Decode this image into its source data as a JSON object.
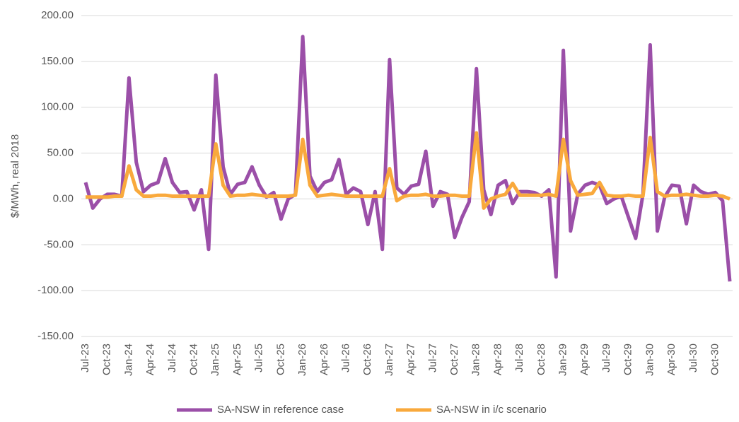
{
  "chart_data": {
    "type": "line",
    "y_label": "$/MWh, real 2018",
    "categories": [
      "Jul-23",
      null,
      null,
      "Oct-23",
      null,
      null,
      "Jan-24",
      null,
      null,
      "Apr-24",
      null,
      null,
      "Jul-24",
      null,
      null,
      "Oct-24",
      null,
      null,
      "Jan-25",
      null,
      null,
      "Apr-25",
      null,
      null,
      "Jul-25",
      null,
      null,
      "Oct-25",
      null,
      null,
      "Jan-26",
      null,
      null,
      "Apr-26",
      null,
      null,
      "Jul-26",
      null,
      null,
      "Oct-26",
      null,
      null,
      "Jan-27",
      null,
      null,
      "Apr-27",
      null,
      null,
      "Jul-27",
      null,
      null,
      "Oct-27",
      null,
      null,
      "Jan-28",
      null,
      null,
      "Apr-28",
      null,
      null,
      "Jul-28",
      null,
      null,
      "Oct-28",
      null,
      null,
      "Jan-29",
      null,
      null,
      "Apr-29",
      null,
      null,
      "Jul-29",
      null,
      null,
      "Oct-29",
      null,
      null,
      "Jan-30",
      null,
      null,
      "Apr-30",
      null,
      null,
      "Jul-30",
      null,
      null,
      "Oct-30",
      null,
      null
    ],
    "series": [
      {
        "name": "SA-NSW in reference case",
        "color": "#9b4fa8",
        "values": [
          18,
          -10,
          0,
          5,
          5,
          3,
          132,
          40,
          8,
          15,
          18,
          44,
          18,
          7,
          8,
          -12,
          10,
          -55,
          135,
          35,
          5,
          16,
          18,
          35,
          15,
          2,
          7,
          -22,
          0,
          5,
          177,
          25,
          8,
          18,
          21,
          43,
          5,
          12,
          8,
          -28,
          8,
          -55,
          152,
          12,
          5,
          14,
          16,
          52,
          -8,
          8,
          5,
          -42,
          -20,
          -3,
          142,
          10,
          -17,
          15,
          20,
          -5,
          8,
          8,
          7,
          3,
          10,
          -85,
          162,
          -35,
          5,
          15,
          18,
          15,
          -5,
          0,
          3,
          -20,
          -43,
          5,
          168,
          -35,
          2,
          15,
          14,
          -27,
          15,
          8,
          5,
          7,
          -2,
          -90
        ]
      },
      {
        "name": "SA-NSW in i/c scenario",
        "color": "#f9a93c",
        "values": [
          2,
          2,
          2,
          2,
          3,
          3,
          36,
          10,
          3,
          3,
          4,
          4,
          3,
          3,
          3,
          3,
          3,
          3,
          60,
          15,
          3,
          4,
          4,
          5,
          4,
          3,
          3,
          3,
          3,
          4,
          65,
          15,
          3,
          4,
          5,
          4,
          3,
          3,
          3,
          3,
          3,
          3,
          33,
          -2,
          3,
          4,
          4,
          5,
          3,
          3,
          4,
          4,
          3,
          3,
          72,
          -10,
          0,
          3,
          5,
          17,
          4,
          4,
          4,
          4,
          5,
          3,
          65,
          20,
          4,
          5,
          6,
          18,
          4,
          3,
          3,
          4,
          3,
          3,
          67,
          8,
          3,
          4,
          4,
          5,
          4,
          3,
          3,
          4,
          3,
          0
        ]
      }
    ],
    "ylim": [
      -150,
      200
    ],
    "yticks": [
      {
        "value": -150,
        "label": "-150.00"
      },
      {
        "value": -100,
        "label": "-100.00"
      },
      {
        "value": -50,
        "label": "-50.00"
      },
      {
        "value": 0,
        "label": "0.00"
      },
      {
        "value": 50,
        "label": "50.00"
      },
      {
        "value": 100,
        "label": "100.00"
      },
      {
        "value": 150,
        "label": "150.00"
      },
      {
        "value": 200,
        "label": "200.00"
      }
    ],
    "grid": true,
    "legend": "bottom"
  }
}
